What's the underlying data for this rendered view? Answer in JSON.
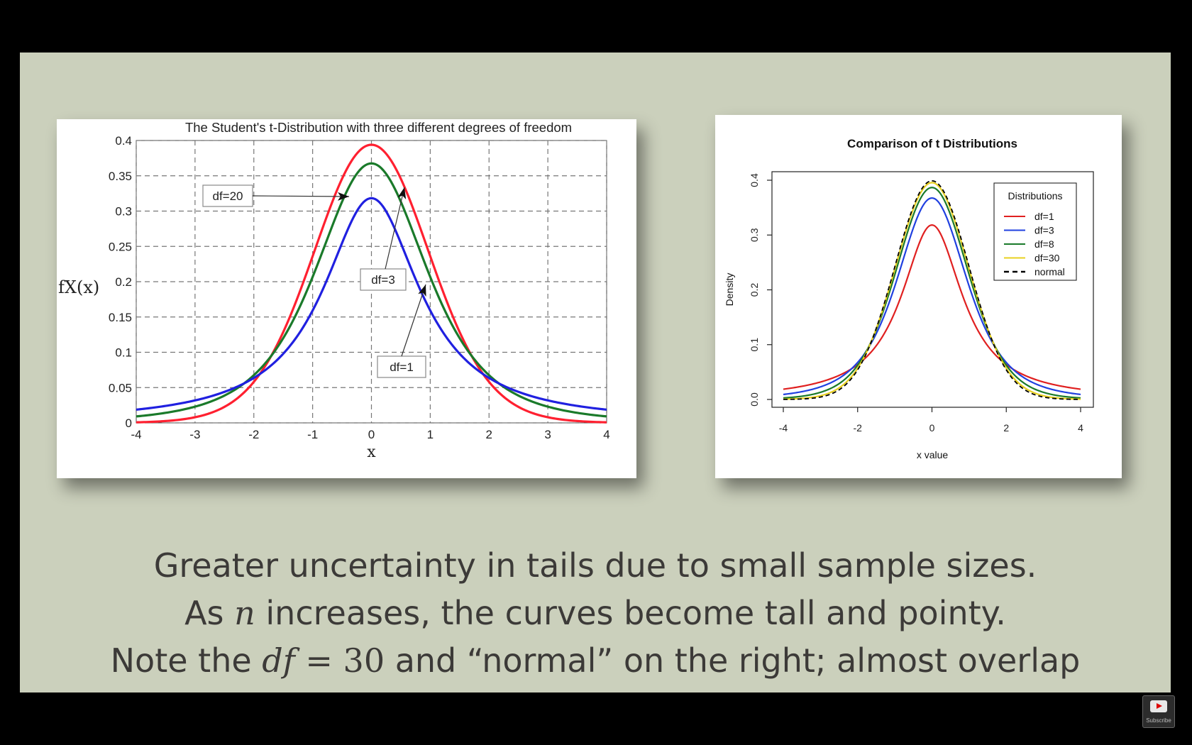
{
  "slide": {
    "caption": {
      "line1": "Greater uncertainty in tails due to small sample sizes.",
      "line2_pre": "As ",
      "line2_var": "n",
      "line2_post": " increases, the curves become tall and pointy.",
      "line3_pre": "Note the ",
      "line3_var": "df",
      "line3_eq": " = 30",
      "line3_post": " and “normal” on the right; almost overlap"
    }
  },
  "player": {
    "subscribe_label": "Subscribe"
  },
  "chart_data": [
    {
      "type": "line",
      "title": "The Student's t-Distribution with three different degrees of freedom",
      "xlabel": "x",
      "ylabel": "fX(x)",
      "xlim": [
        -4,
        4
      ],
      "ylim": [
        0,
        0.4
      ],
      "x_ticks": [
        "-4",
        "-3",
        "-2",
        "-1",
        "0",
        "1",
        "2",
        "3",
        "4"
      ],
      "y_ticks": [
        "0",
        "0.05",
        "0.1",
        "0.15",
        "0.2",
        "0.25",
        "0.3",
        "0.35",
        "0.4"
      ],
      "grid": true,
      "series": [
        {
          "name": "df=20",
          "color": "#ff2030",
          "df": 20,
          "x": [
            -4,
            -3,
            -2,
            -1,
            0,
            1,
            2,
            3,
            4
          ],
          "values": [
            0.001,
            0.007,
            0.058,
            0.236,
            0.394,
            0.236,
            0.058,
            0.007,
            0.001
          ]
        },
        {
          "name": "df=3",
          "color": "#1a7a2a",
          "df": 3,
          "x": [
            -4,
            -3,
            -2,
            -1,
            0,
            1,
            2,
            3,
            4
          ],
          "values": [
            0.009,
            0.023,
            0.068,
            0.207,
            0.368,
            0.207,
            0.068,
            0.023,
            0.009
          ]
        },
        {
          "name": "df=1",
          "color": "#2020e0",
          "df": 1,
          "x": [
            -4,
            -3,
            -2,
            -1,
            0,
            1,
            2,
            3,
            4
          ],
          "values": [
            0.019,
            0.032,
            0.064,
            0.159,
            0.318,
            0.159,
            0.064,
            0.032,
            0.019
          ]
        }
      ],
      "annotations": [
        "df=20",
        "df=3",
        "df=1"
      ]
    },
    {
      "type": "line",
      "title": "Comparison of t Distributions",
      "xlabel": "x value",
      "ylabel": "Density",
      "xlim": [
        -4,
        4
      ],
      "ylim": [
        0,
        0.4
      ],
      "x_ticks": [
        "-4",
        "-2",
        "0",
        "2",
        "4"
      ],
      "y_ticks": [
        "0.0",
        "0.1",
        "0.2",
        "0.3",
        "0.4"
      ],
      "grid": false,
      "legend": {
        "title": "Distributions",
        "position": "top-right"
      },
      "series": [
        {
          "name": "df=1",
          "color": "#e02020",
          "df": 1,
          "dash": false,
          "x": [
            -4,
            -2,
            0,
            2,
            4
          ],
          "values": [
            0.019,
            0.064,
            0.318,
            0.064,
            0.019
          ]
        },
        {
          "name": "df=3",
          "color": "#2040e0",
          "df": 3,
          "dash": false,
          "x": [
            -4,
            -2,
            0,
            2,
            4
          ],
          "values": [
            0.009,
            0.068,
            0.368,
            0.068,
            0.009
          ]
        },
        {
          "name": "df=8",
          "color": "#1a7a2a",
          "df": 8,
          "dash": false,
          "x": [
            -4,
            -2,
            0,
            2,
            4
          ],
          "values": [
            0.003,
            0.065,
            0.387,
            0.065,
            0.003
          ]
        },
        {
          "name": "df=30",
          "color": "#e8d020",
          "df": 30,
          "dash": false,
          "x": [
            -4,
            -2,
            0,
            2,
            4
          ],
          "values": [
            0.0002,
            0.056,
            0.396,
            0.056,
            0.0002
          ]
        },
        {
          "name": "normal",
          "color": "#000000",
          "df": null,
          "dash": true,
          "x": [
            -4,
            -2,
            0,
            2,
            4
          ],
          "values": [
            0.0001,
            0.054,
            0.399,
            0.054,
            0.0001
          ]
        }
      ]
    }
  ]
}
